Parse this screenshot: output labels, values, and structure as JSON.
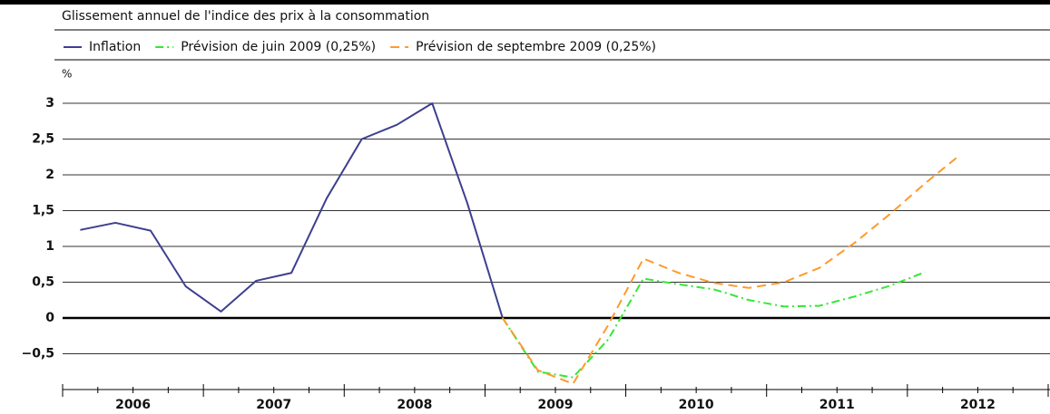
{
  "chart_data": {
    "type": "line",
    "title": "Glissement annuel de l'indice des prix à la consommation",
    "y_label": "%",
    "x": [
      2006.125,
      2006.375,
      2006.625,
      2006.875,
      2007.125,
      2007.375,
      2007.625,
      2007.875,
      2008.125,
      2008.375,
      2008.625,
      2008.875,
      2009.125,
      2009.375,
      2009.625,
      2009.875,
      2010.125,
      2010.375,
      2010.625,
      2010.875,
      2011.125,
      2011.375,
      2011.625,
      2011.875,
      2012.125,
      2012.375
    ],
    "series": [
      {
        "name": "Inflation",
        "color": "#3d3f8f",
        "dash": "solid",
        "values": [
          1.23,
          1.33,
          1.22,
          0.44,
          0.09,
          0.52,
          0.63,
          1.67,
          2.5,
          2.7,
          3.0,
          1.6,
          0,
          null,
          null,
          null,
          null,
          null,
          null,
          null,
          null,
          null,
          null,
          null,
          null,
          null
        ]
      },
      {
        "name": "Prévision de juin 2009 (0,25%)",
        "color": "#33e833",
        "dash": "dashdot",
        "values": [
          null,
          null,
          null,
          null,
          null,
          null,
          null,
          null,
          null,
          null,
          null,
          null,
          0,
          -0.75,
          -0.83,
          -0.3,
          0.55,
          0.47,
          0.4,
          0.25,
          0.16,
          0.17,
          0.3,
          0.45,
          0.64,
          null
        ]
      },
      {
        "name": "Prévision de septembre 2009 (0,25%)",
        "color": "#ff9a2a",
        "dash": "dashed",
        "values": [
          null,
          null,
          null,
          null,
          null,
          null,
          null,
          null,
          null,
          null,
          null,
          null,
          0,
          -0.73,
          -0.92,
          -0.1,
          0.83,
          0.63,
          0.49,
          0.42,
          0.5,
          0.7,
          1.05,
          1.45,
          1.88,
          2.28
        ]
      }
    ],
    "xlim": [
      2006,
      2013
    ],
    "xticks": [
      {
        "value": 2006.5,
        "label": "2006"
      },
      {
        "value": 2007.5,
        "label": "2007"
      },
      {
        "value": 2008.5,
        "label": "2008"
      },
      {
        "value": 2009.5,
        "label": "2009"
      },
      {
        "value": 2010.5,
        "label": "2010"
      },
      {
        "value": 2011.5,
        "label": "2011"
      },
      {
        "value": 2012.5,
        "label": "2012"
      }
    ],
    "ylim": [
      -1,
      3.2
    ],
    "yticks": [
      {
        "value": -0.5,
        "label": "−0,5"
      },
      0,
      {
        "value": 0.5,
        "label": "0,5"
      },
      1,
      {
        "value": 1.5,
        "label": "1,5"
      },
      2,
      {
        "value": 2.5,
        "label": "2,5"
      },
      3
    ],
    "grid": true,
    "legend": "top"
  }
}
